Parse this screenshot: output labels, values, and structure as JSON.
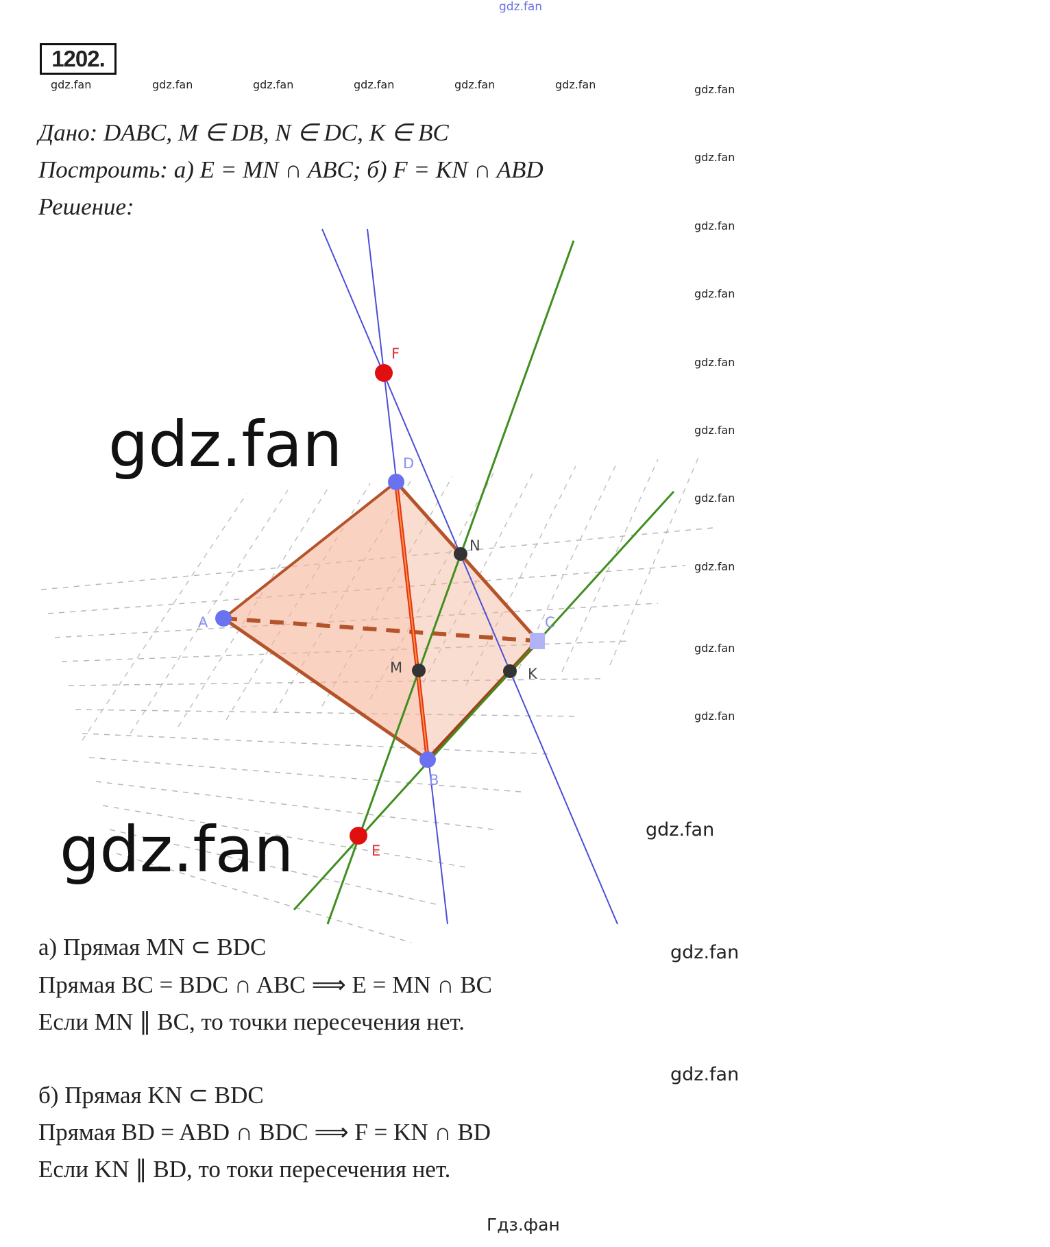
{
  "watermarks": {
    "top": "gdz.fan",
    "row": [
      "gdz.fan",
      "gdz.fan",
      "gdz.fan",
      "gdz.fan",
      "gdz.fan",
      "gdz.fan"
    ],
    "column": [
      "gdz.fan",
      "gdz.fan",
      "gdz.fan",
      "gdz.fan",
      "gdz.fan",
      "gdz.fan",
      "gdz.fan",
      "gdz.fan",
      "gdz.fan",
      "gdz.fan"
    ],
    "big1": "gdz.fan",
    "big2": "gdz.fan",
    "mid1": "gdz.fan",
    "mid2": "gdz.fan",
    "mid3": "gdz.fan",
    "bottom": "Гдз.фан"
  },
  "problem_number": "1202.",
  "given": {
    "label": "Дано",
    "text": ": DABC, M ∈ DB, N ∈ DC, K ∈ BC"
  },
  "construct": {
    "label": "Построить",
    "text": ": а) E = MN ∩ ABC; б) F = KN ∩ ABD"
  },
  "solution_label": "Решение:",
  "figure": {
    "points": {
      "A": "A",
      "B": "B",
      "C": "C",
      "D": "D",
      "M": "M",
      "N": "N",
      "K": "K",
      "E": "E",
      "F": "F"
    },
    "colors": {
      "face": "#f5b49a",
      "edge": "#b5532a",
      "blue_line": "#4a4fd6",
      "green_line": "#3f8f1e",
      "red_point": "#e01010",
      "blue_point": "#6a72f0",
      "dark_point": "#333333",
      "edge_db": "#e8301a"
    }
  },
  "solution": {
    "a": [
      "а) Прямая MN ⊂ BDC",
      "Прямая BC = BDC ∩ ABC ⟹ E = MN ∩ BC",
      "Если MN ∥ BC, то точки пересечения нет."
    ],
    "b": [
      "б) Прямая KN ⊂ BDC",
      "Прямая BD = ABD ∩ BDC ⟹ F = KN ∩ BD",
      "Если KN ∥ BD, то токи пересечения нет."
    ]
  }
}
